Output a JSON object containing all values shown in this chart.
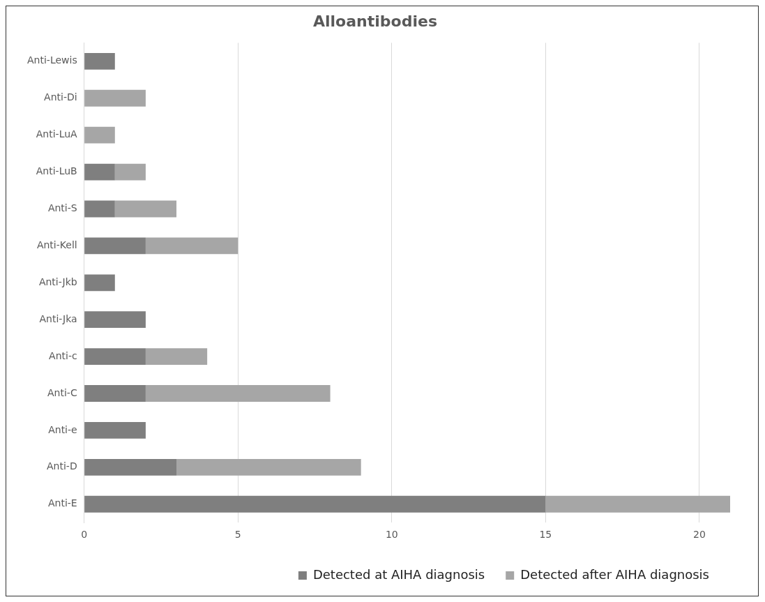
{
  "chart_data": {
    "type": "bar",
    "title": "Alloantibodies",
    "orientation": "horizontal",
    "stacked": true,
    "categories": [
      "Anti-Lewis",
      "Anti-Di",
      "Anti-LuA",
      "Anti-LuB",
      "Anti-S",
      "Anti-Kell",
      "Anti-Jkb",
      "Anti-Jka",
      "Anti-c",
      "Anti-C",
      "Anti-e",
      "Anti-D",
      "Anti-E"
    ],
    "series": [
      {
        "name": "Detected at AIHA diagnosis",
        "color": "#7f7f7f",
        "values": [
          1,
          0,
          0,
          1,
          1,
          2,
          1,
          2,
          2,
          2,
          2,
          3,
          15
        ]
      },
      {
        "name": "Detected after AIHA diagnosis",
        "color": "#a6a6a6",
        "values": [
          0,
          2,
          1,
          1,
          2,
          3,
          0,
          0,
          2,
          6,
          0,
          6,
          6
        ]
      }
    ],
    "xlim": [
      0,
      21
    ],
    "xticks": [
      0,
      5,
      10,
      15,
      20
    ],
    "grid": "x",
    "legend": "bottom"
  }
}
